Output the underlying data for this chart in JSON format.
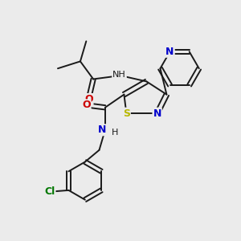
{
  "background_color": "#ebebeb",
  "fig_size": [
    3.0,
    3.0
  ],
  "dpi": 100,
  "colors": {
    "black": "#1a1a1a",
    "blue": "#0000cc",
    "red": "#cc0000",
    "sulfur": "#b8b800",
    "green": "#007700"
  },
  "xlim": [
    0,
    10
  ],
  "ylim": [
    0,
    10
  ]
}
